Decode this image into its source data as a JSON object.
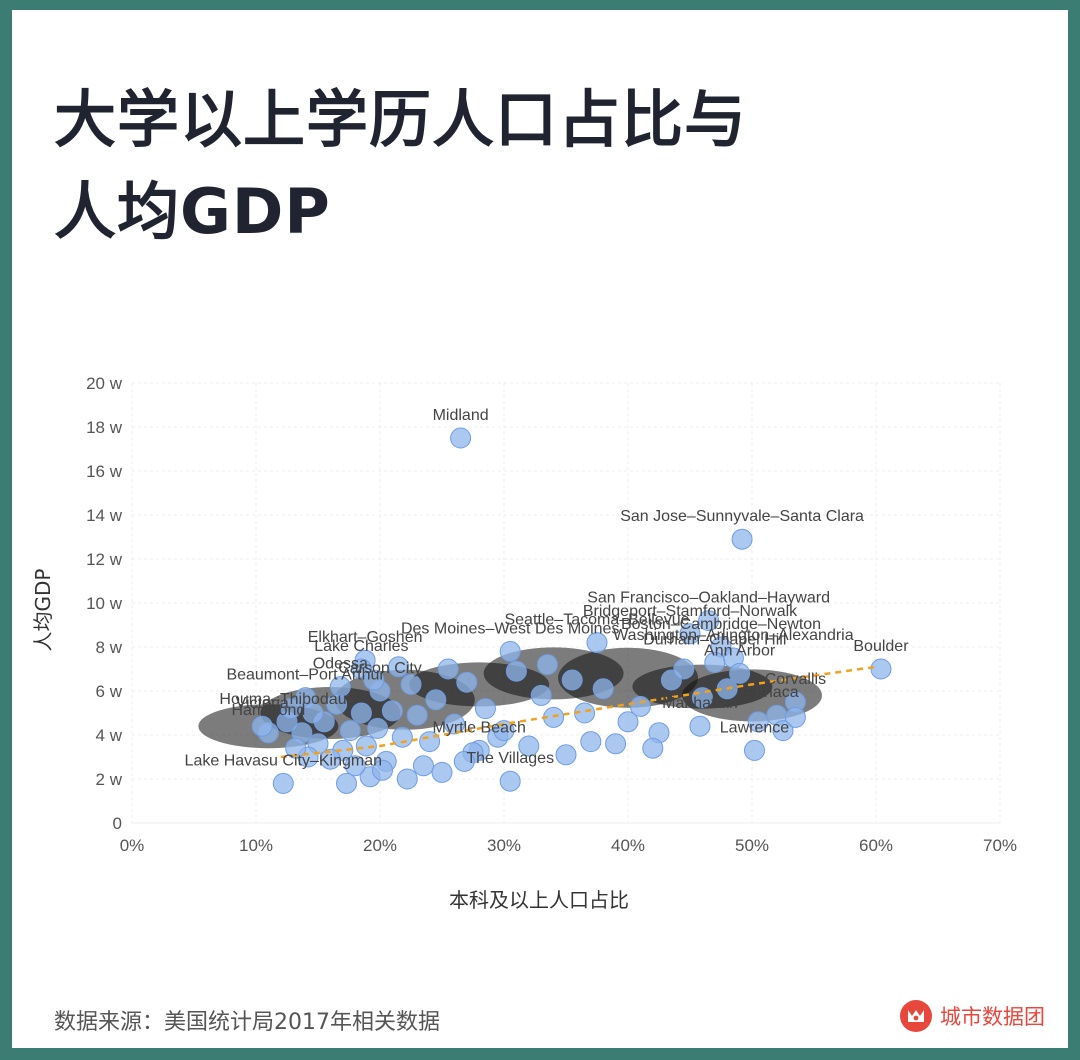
{
  "title_line1": "大学以上学历人口占比与",
  "title_line2": "人均GDP",
  "footer": {
    "source": "数据来源：美国统计局2017年相关数据",
    "brand": "城市数据团"
  },
  "colors": {
    "point": "#8fb6ec",
    "point_stroke": "#6f9ce0",
    "trend": "#f0a11e",
    "brand": "#e8473c"
  },
  "chart_data": {
    "type": "scatter",
    "xlabel": "本科及以上人口占比",
    "ylabel": "人均GDP",
    "xlim": [
      0,
      70
    ],
    "ylim": [
      0,
      20
    ],
    "xticks": [
      "0%",
      "10%",
      "20%",
      "30%",
      "40%",
      "50%",
      "60%",
      "70%"
    ],
    "yticks": [
      "0",
      "2 w",
      "4 w",
      "6 w",
      "8 w",
      "10 w",
      "12 w",
      "14 w",
      "16 w",
      "18 w",
      "20 w"
    ],
    "grid": true,
    "trend_line": [
      [
        12,
        3.0
      ],
      [
        20,
        3.5
      ],
      [
        30,
        4.5
      ],
      [
        40,
        5.4
      ],
      [
        50,
        6.3
      ],
      [
        60,
        7.1
      ]
    ],
    "points": [
      {
        "x": 26.5,
        "y": 17.5,
        "label": "Midland"
      },
      {
        "x": 49.2,
        "y": 12.9,
        "label": "San Jose–Sunnyvale–Santa Clara"
      },
      {
        "x": 60.4,
        "y": 7.0,
        "label": "Boulder"
      },
      {
        "x": 46.5,
        "y": 9.2,
        "label": "San Francisco–Oakland–Hayward"
      },
      {
        "x": 45.0,
        "y": 8.6,
        "label": "Bridgeport–Stamford–Norwalk"
      },
      {
        "x": 47.5,
        "y": 8.0,
        "label": "Boston–Cambridge–Newton"
      },
      {
        "x": 48.5,
        "y": 7.5,
        "label": "Washington–Arlington–Alexandria"
      },
      {
        "x": 18.8,
        "y": 7.4,
        "label": "Elkhart–Goshen"
      },
      {
        "x": 30.5,
        "y": 7.8,
        "label": "Des Moines–West Des Moines"
      },
      {
        "x": 37.5,
        "y": 8.2,
        "label": "Seattle–Tacoma–Bellevue"
      },
      {
        "x": 16.8,
        "y": 6.2,
        "label": "Odessa"
      },
      {
        "x": 18.5,
        "y": 7.0,
        "label": "Lake Charles"
      },
      {
        "x": 20.0,
        "y": 6.0,
        "label": "Carson City"
      },
      {
        "x": 14.0,
        "y": 5.7,
        "label": "Beaumont–Port Arthur"
      },
      {
        "x": 12.5,
        "y": 4.6,
        "label": "Houma–Thibodaux"
      },
      {
        "x": 11.0,
        "y": 4.1,
        "label": "Hammond"
      },
      {
        "x": 10.5,
        "y": 4.4,
        "label": "Victoria"
      },
      {
        "x": 12.2,
        "y": 1.8,
        "label": "Lake Havasu City–Kingman"
      },
      {
        "x": 30.5,
        "y": 1.9,
        "label": "The Villages"
      },
      {
        "x": 28.0,
        "y": 3.3,
        "label": "Myrtle Beach"
      },
      {
        "x": 49.0,
        "y": 6.8,
        "label": "Ann Arbor"
      },
      {
        "x": 53.5,
        "y": 5.5,
        "label": "Corvallis"
      },
      {
        "x": 52.0,
        "y": 4.9,
        "label": "Ithaca"
      },
      {
        "x": 50.2,
        "y": 3.3,
        "label": "Lawrence"
      },
      {
        "x": 47.0,
        "y": 7.3,
        "label": "Durham–Chapel Hill"
      },
      {
        "x": 45.8,
        "y": 4.4,
        "label": "Manhattan"
      },
      {
        "x": 42.5,
        "y": 4.1
      },
      {
        "x": 42.0,
        "y": 3.4
      },
      {
        "x": 50.5,
        "y": 4.6
      },
      {
        "x": 52.5,
        "y": 4.2
      },
      {
        "x": 53.5,
        "y": 4.8
      },
      {
        "x": 43.5,
        "y": 6.5
      },
      {
        "x": 44.5,
        "y": 7.0
      },
      {
        "x": 41.0,
        "y": 5.3
      },
      {
        "x": 39.0,
        "y": 3.6
      },
      {
        "x": 37.0,
        "y": 3.7
      },
      {
        "x": 35.5,
        "y": 6.5
      },
      {
        "x": 34.0,
        "y": 4.8
      },
      {
        "x": 33.0,
        "y": 5.8
      },
      {
        "x": 32.0,
        "y": 3.5
      },
      {
        "x": 31.0,
        "y": 6.9
      },
      {
        "x": 29.5,
        "y": 3.9
      },
      {
        "x": 28.5,
        "y": 5.2
      },
      {
        "x": 27.5,
        "y": 3.2
      },
      {
        "x": 27.0,
        "y": 6.4
      },
      {
        "x": 26.0,
        "y": 4.5
      },
      {
        "x": 25.0,
        "y": 2.3
      },
      {
        "x": 24.5,
        "y": 5.6
      },
      {
        "x": 24.0,
        "y": 3.7
      },
      {
        "x": 23.5,
        "y": 2.6
      },
      {
        "x": 23.0,
        "y": 4.9
      },
      {
        "x": 22.5,
        "y": 6.3
      },
      {
        "x": 22.2,
        "y": 2.0
      },
      {
        "x": 21.8,
        "y": 3.9
      },
      {
        "x": 21.0,
        "y": 5.1
      },
      {
        "x": 20.5,
        "y": 2.8
      },
      {
        "x": 19.8,
        "y": 4.3
      },
      {
        "x": 19.5,
        "y": 6.5
      },
      {
        "x": 19.2,
        "y": 2.1
      },
      {
        "x": 18.9,
        "y": 3.5
      },
      {
        "x": 18.5,
        "y": 5.0
      },
      {
        "x": 18.0,
        "y": 2.6
      },
      {
        "x": 17.6,
        "y": 4.2
      },
      {
        "x": 17.3,
        "y": 1.8
      },
      {
        "x": 17.0,
        "y": 3.3
      },
      {
        "x": 16.5,
        "y": 5.4
      },
      {
        "x": 16.0,
        "y": 2.9
      },
      {
        "x": 15.5,
        "y": 4.6
      },
      {
        "x": 15.0,
        "y": 3.6
      },
      {
        "x": 14.6,
        "y": 5.0
      },
      {
        "x": 14.2,
        "y": 3.0
      },
      {
        "x": 13.7,
        "y": 4.1
      },
      {
        "x": 13.2,
        "y": 3.4
      },
      {
        "x": 12.8,
        "y": 5.2
      },
      {
        "x": 36.5,
        "y": 5.0
      },
      {
        "x": 38.0,
        "y": 6.1
      },
      {
        "x": 40.0,
        "y": 4.6
      },
      {
        "x": 46.0,
        "y": 5.7
      },
      {
        "x": 48.0,
        "y": 6.1
      },
      {
        "x": 35.0,
        "y": 3.1
      },
      {
        "x": 33.5,
        "y": 7.2
      },
      {
        "x": 30.0,
        "y": 4.2
      },
      {
        "x": 26.8,
        "y": 2.8
      },
      {
        "x": 25.5,
        "y": 7.0
      },
      {
        "x": 21.5,
        "y": 7.1
      },
      {
        "x": 20.2,
        "y": 2.4
      }
    ]
  }
}
